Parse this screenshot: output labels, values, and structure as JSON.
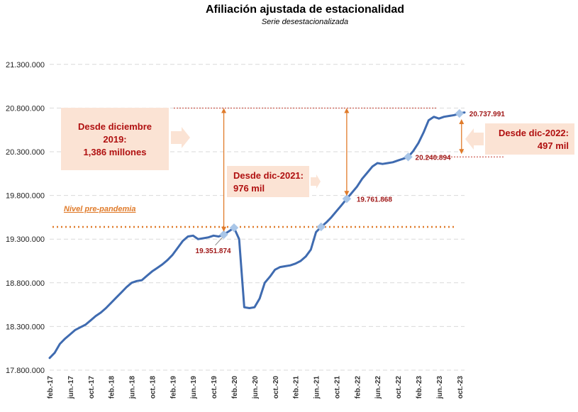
{
  "chart_data": {
    "type": "line",
    "title": "Afiliación ajustada de estacionalidad",
    "subtitle": "Serie desestacionalizada",
    "xlabel": "",
    "ylabel": "",
    "ylim": [
      17800000,
      21550000
    ],
    "yticks": [
      17800000,
      18300000,
      18800000,
      19300000,
      19800000,
      20300000,
      20800000,
      21300000
    ],
    "ytick_labels": [
      "17.800.000",
      "18.300.000",
      "18.800.000",
      "19.300.000",
      "19.800.000",
      "20.300.000",
      "20.800.000",
      "21.300.000"
    ],
    "xtick_labels": [
      "feb.-17",
      "jun.-17",
      "oct.-17",
      "feb.-18",
      "jun.-18",
      "oct.-18",
      "feb.-19",
      "jun.-19",
      "oct.-19",
      "feb.-20",
      "jun.-20",
      "oct.-20",
      "feb.-21",
      "jun.-21",
      "oct.-21",
      "feb.-22",
      "jun.-22",
      "oct.-22",
      "feb.-23",
      "jun.-23",
      "oct.-23"
    ],
    "grid": true,
    "series": [
      {
        "color": "#3f6bb0",
        "x": [
          "2017-02",
          "2017-03",
          "2017-04",
          "2017-05",
          "2017-06",
          "2017-07",
          "2017-08",
          "2017-09",
          "2017-10",
          "2017-11",
          "2017-12",
          "2018-01",
          "2018-02",
          "2018-03",
          "2018-04",
          "2018-05",
          "2018-06",
          "2018-07",
          "2018-08",
          "2018-09",
          "2018-10",
          "2018-11",
          "2018-12",
          "2019-01",
          "2019-02",
          "2019-03",
          "2019-04",
          "2019-05",
          "2019-06",
          "2019-07",
          "2019-08",
          "2019-09",
          "2019-10",
          "2019-11",
          "2019-12",
          "2020-01",
          "2020-02",
          "2020-03",
          "2020-04",
          "2020-05",
          "2020-06",
          "2020-07",
          "2020-08",
          "2020-09",
          "2020-10",
          "2020-11",
          "2020-12",
          "2021-01",
          "2021-02",
          "2021-03",
          "2021-04",
          "2021-05",
          "2021-06",
          "2021-07",
          "2021-08",
          "2021-09",
          "2021-10",
          "2021-11",
          "2021-12",
          "2022-01",
          "2022-02",
          "2022-03",
          "2022-04",
          "2022-05",
          "2022-06",
          "2022-07",
          "2022-08",
          "2022-09",
          "2022-10",
          "2022-11",
          "2022-12",
          "2023-01",
          "2023-02",
          "2023-03",
          "2023-04",
          "2023-05",
          "2023-06",
          "2023-07",
          "2023-08",
          "2023-09",
          "2023-10",
          "2023-11"
        ],
        "y": [
          17940000,
          18000000,
          18100000,
          18160000,
          18210000,
          18260000,
          18290000,
          18320000,
          18370000,
          18420000,
          18460000,
          18510000,
          18570000,
          18630000,
          18690000,
          18750000,
          18800000,
          18820000,
          18830000,
          18880000,
          18930000,
          18970000,
          19010000,
          19060000,
          19120000,
          19200000,
          19280000,
          19330000,
          19340000,
          19300000,
          19310000,
          19320000,
          19340000,
          19330000,
          19351874,
          19390000,
          19430000,
          19300000,
          18520000,
          18510000,
          18520000,
          18620000,
          18800000,
          18870000,
          18950000,
          18980000,
          18990000,
          19000000,
          19020000,
          19050000,
          19100000,
          19180000,
          19380000,
          19440000,
          19490000,
          19550000,
          19620000,
          19690000,
          19761868,
          19830000,
          19900000,
          19990000,
          20060000,
          20130000,
          20170000,
          20160000,
          20170000,
          20180000,
          20200000,
          20220000,
          20240894,
          20310000,
          20400000,
          20520000,
          20660000,
          20700000,
          20680000,
          20700000,
          20710000,
          20720000,
          20737991,
          20750000
        ]
      }
    ],
    "markers": [
      {
        "x": "2019-12",
        "y": 19351874,
        "label": "19.351.874"
      },
      {
        "x": "2020-02",
        "y": 19430000,
        "label": ""
      },
      {
        "x": "2021-07",
        "y": 19440000,
        "label": ""
      },
      {
        "x": "2021-12",
        "y": 19761868,
        "label": "19.761.868"
      },
      {
        "x": "2022-12",
        "y": 20240894,
        "label": "20.240.894"
      },
      {
        "x": "2023-10",
        "y": 20737991,
        "label": "20.737.991"
      }
    ],
    "reference_lines": {
      "pre_pandemic": {
        "y": 19440000,
        "label": "Nivel pre-pandemia",
        "color": "#e07b2a"
      },
      "latest": {
        "y": 20800000,
        "color": "#c0392b"
      },
      "dec_2022": {
        "y": 20240894,
        "color": "#c0392b"
      }
    },
    "annotations": [
      {
        "lines": [
          "Desde diciembre",
          "2019:",
          "1,386 millones"
        ]
      },
      {
        "lines": [
          "Desde dic-2021:",
          "976 mil"
        ]
      },
      {
        "lines": [
          "Desde dic-2022:",
          "497 mil"
        ]
      }
    ],
    "legend": "none"
  }
}
